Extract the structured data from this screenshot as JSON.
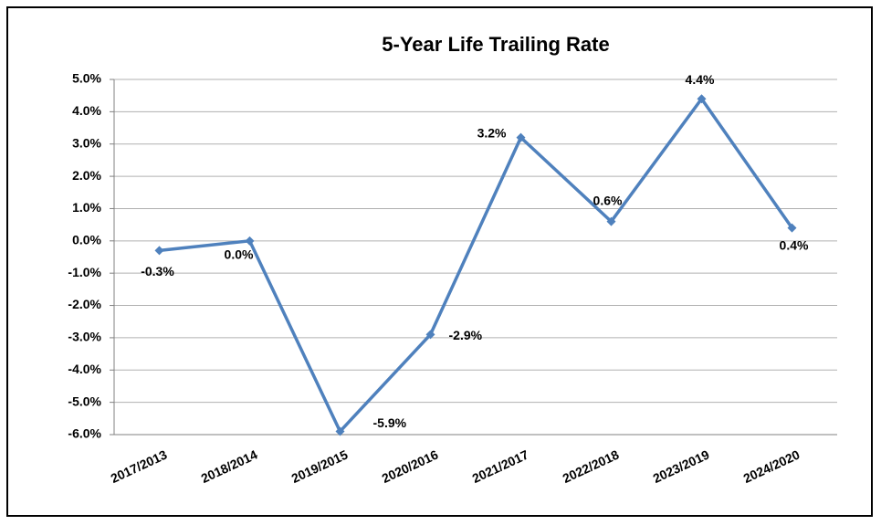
{
  "chart_data": {
    "type": "line",
    "title": "5-Year Life Trailing Rate",
    "categories": [
      "2017/2013",
      "2018/2014",
      "2019/2015",
      "2020/2016",
      "2021/2017",
      "2022/2018",
      "2023/2019",
      "2024/2020"
    ],
    "series": [
      {
        "name": "5-Year Life Trailing Rate",
        "color": "#4f81bd",
        "values": [
          -0.3,
          0.0,
          -5.9,
          -2.9,
          3.2,
          0.6,
          4.4,
          0.4
        ],
        "value_labels": [
          "-0.3%",
          "0.0%",
          "-5.9%",
          "-2.9%",
          "3.2%",
          "0.6%",
          "4.4%",
          "0.4%"
        ]
      }
    ],
    "ylim": [
      -6,
      5
    ],
    "yticks": [
      {
        "value": 5,
        "label": "5.0%"
      },
      {
        "value": 4,
        "label": "4.0%"
      },
      {
        "value": 3,
        "label": "3.0%"
      },
      {
        "value": 2,
        "label": "2.0%"
      },
      {
        "value": 1,
        "label": "1.0%"
      },
      {
        "value": 0,
        "label": "0.0%"
      },
      {
        "value": -1,
        "label": "-1.0%"
      },
      {
        "value": -2,
        "label": "-2.0%"
      },
      {
        "value": -3,
        "label": "-3.0%"
      },
      {
        "value": -4,
        "label": "-4.0%"
      },
      {
        "value": -5,
        "label": "-5.0%"
      },
      {
        "value": -6,
        "label": "-6.0%"
      }
    ],
    "grid": true
  }
}
